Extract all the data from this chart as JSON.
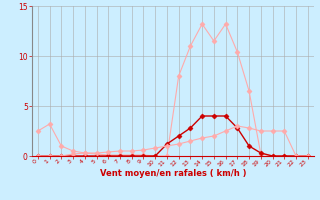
{
  "x": [
    0,
    1,
    2,
    3,
    4,
    5,
    6,
    7,
    8,
    9,
    10,
    11,
    12,
    13,
    14,
    15,
    16,
    17,
    18,
    19,
    20,
    21,
    22,
    23
  ],
  "line_gust": [
    2.5,
    3.2,
    1.0,
    0.5,
    0.3,
    0.2,
    0.1,
    0.1,
    0.1,
    0.1,
    0.0,
    0.0,
    8.0,
    11.0,
    13.2,
    11.5,
    13.2,
    10.4,
    6.5,
    0.2,
    0.0,
    0.0,
    0.0,
    0.0
  ],
  "line_avg": [
    0.0,
    0.0,
    0.0,
    0.0,
    0.0,
    0.0,
    0.0,
    0.0,
    0.0,
    0.0,
    0.0,
    1.2,
    2.0,
    2.8,
    4.0,
    4.0,
    4.0,
    2.8,
    1.0,
    0.3,
    0.0,
    0.0,
    0.0,
    0.0
  ],
  "line_mean": [
    0.0,
    0.0,
    0.0,
    0.2,
    0.3,
    0.3,
    0.4,
    0.5,
    0.5,
    0.6,
    0.8,
    1.0,
    1.2,
    1.5,
    1.8,
    2.0,
    2.5,
    3.0,
    2.8,
    2.5,
    2.5,
    2.5,
    0.0,
    0.0
  ],
  "bg_color": "#cceeff",
  "grid_color": "#aaaaaa",
  "line_gust_color": "#ffaaaa",
  "line_avg_color": "#cc0000",
  "line_mean_color": "#ffaaaa",
  "xlabel": "Vent moyen/en rafales ( km/h )",
  "ylim": [
    0,
    15
  ],
  "xlim": [
    -0.5,
    23.5
  ],
  "yticks": [
    0,
    5,
    10,
    15
  ],
  "xticks": [
    0,
    1,
    2,
    3,
    4,
    5,
    6,
    7,
    8,
    9,
    10,
    11,
    12,
    13,
    14,
    15,
    16,
    17,
    18,
    19,
    20,
    21,
    22,
    23
  ]
}
